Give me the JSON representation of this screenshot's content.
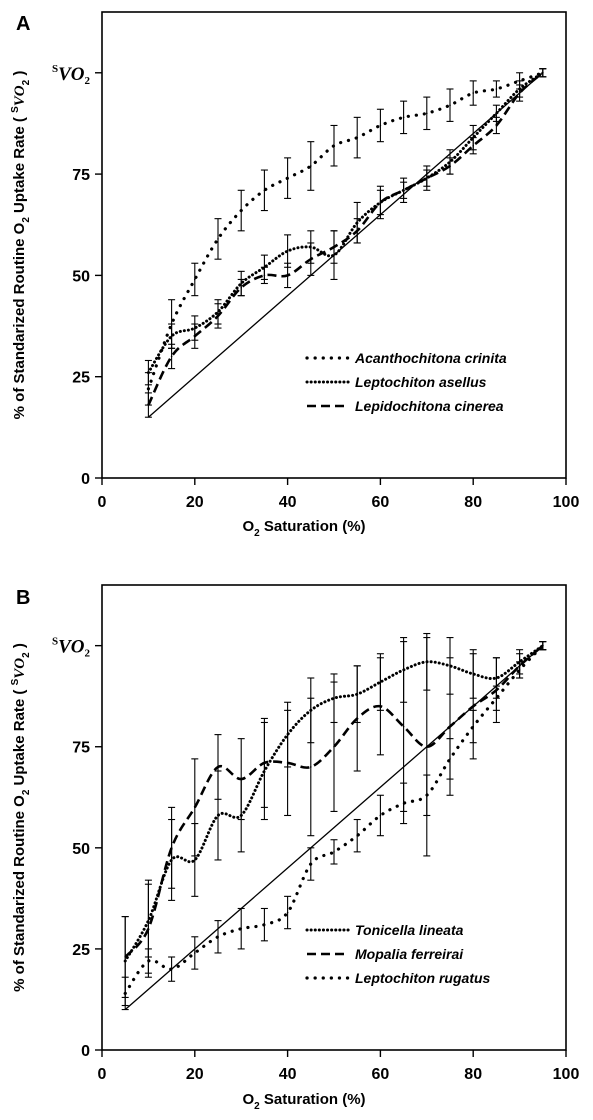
{
  "chart_data": [
    {
      "type": "line",
      "panel_label": "A",
      "xlabel_main": "O",
      "xlabel_sub": "2",
      "xlabel_rest": " Saturation (%)",
      "ylabel_pre": "% of Standarized Routine O",
      "ylabel_sub": "2",
      "ylabel_mid": " Uptake Rate ( ",
      "ylabel_sup": "S",
      "ylabel_v": "VO",
      "ylabel_sub2": "2",
      "ylabel_end": " )",
      "svo2_sup": "S",
      "svo2_v": "VO",
      "svo2_sub": "2",
      "xlim": [
        0,
        100
      ],
      "ylim": [
        0,
        115
      ],
      "x_ticks": [
        "0",
        "20",
        "40",
        "60",
        "80",
        "100"
      ],
      "y_ticks": [
        "0",
        "25",
        "50",
        "75"
      ],
      "legend_position": "bottom-right",
      "reference_line": [
        [
          10,
          15
        ],
        [
          95,
          100
        ]
      ],
      "series": [
        {
          "name": "Acanthochitona crinita",
          "style": "dotted-sparse",
          "x": [
            10,
            15,
            20,
            25,
            30,
            35,
            40,
            45,
            50,
            55,
            60,
            65,
            70,
            75,
            80,
            85,
            90,
            95
          ],
          "y": [
            22,
            38,
            49,
            59,
            66,
            71,
            74,
            77,
            82,
            84,
            87,
            89,
            90,
            92,
            95,
            96,
            98,
            100
          ],
          "err": [
            4,
            6,
            4,
            5,
            5,
            5,
            5,
            6,
            5,
            5,
            4,
            4,
            4,
            4,
            3,
            2,
            2,
            1
          ]
        },
        {
          "name": "Leptochiton asellus",
          "style": "dotted-dense",
          "x": [
            10,
            15,
            20,
            25,
            30,
            35,
            40,
            45,
            50,
            55,
            60,
            65,
            70,
            75,
            80,
            85,
            90,
            95
          ],
          "y": [
            26,
            35,
            37,
            41,
            48,
            52,
            56,
            57,
            55,
            63,
            68,
            71,
            74,
            78,
            84,
            90,
            96,
            100
          ],
          "err": [
            3,
            3,
            3,
            3,
            3,
            3,
            4,
            4,
            6,
            5,
            4,
            3,
            3,
            3,
            3,
            2,
            2,
            1
          ]
        },
        {
          "name": "Lepidochitona cinerea",
          "style": "dashed",
          "x": [
            10,
            15,
            20,
            25,
            30,
            35,
            40,
            45,
            50,
            55,
            60,
            65,
            70,
            75,
            80,
            85,
            90,
            95
          ],
          "y": [
            18,
            30,
            35,
            40,
            47,
            50,
            50,
            54,
            57,
            61,
            68,
            71,
            74,
            77,
            82,
            87,
            95,
            100
          ],
          "err": [
            3,
            3,
            3,
            3,
            2,
            2,
            3,
            4,
            4,
            3,
            3,
            2,
            2,
            2,
            2,
            2,
            2,
            1
          ]
        }
      ]
    },
    {
      "type": "line",
      "panel_label": "B",
      "xlabel_main": "O",
      "xlabel_sub": "2",
      "xlabel_rest": " Saturation (%)",
      "ylabel_pre": "% of Standarized Routine O",
      "ylabel_sub": "2",
      "ylabel_mid": " Uptake Rate ( ",
      "ylabel_sup": "S",
      "ylabel_v": "VO",
      "ylabel_sub2": "2",
      "ylabel_end": " )",
      "svo2_sup": "S",
      "svo2_v": "VO",
      "svo2_sub": "2",
      "xlim": [
        0,
        100
      ],
      "ylim": [
        0,
        115
      ],
      "x_ticks": [
        "0",
        "20",
        "40",
        "60",
        "80",
        "100"
      ],
      "y_ticks": [
        "0",
        "25",
        "50",
        "75"
      ],
      "legend_position": "bottom-right",
      "reference_line": [
        [
          5,
          10
        ],
        [
          95,
          100
        ]
      ],
      "series": [
        {
          "name": "Tonicella lineata",
          "style": "dotted-dense",
          "x": [
            5,
            10,
            15,
            20,
            25,
            30,
            35,
            40,
            45,
            50,
            55,
            60,
            65,
            70,
            75,
            80,
            85,
            90,
            95
          ],
          "y": [
            22,
            32,
            47,
            47,
            58,
            58,
            69,
            78,
            84,
            87,
            88,
            91,
            94,
            96,
            95,
            93,
            92,
            96,
            100
          ],
          "err": [
            11,
            9,
            10,
            9,
            11,
            9,
            12,
            8,
            8,
            6,
            7,
            7,
            8,
            7,
            7,
            6,
            5,
            3,
            1
          ]
        },
        {
          "name": "Mopalia ferreirai",
          "style": "dashed",
          "x": [
            5,
            10,
            15,
            20,
            25,
            30,
            35,
            40,
            45,
            50,
            55,
            60,
            65,
            70,
            75,
            80,
            85,
            90,
            95
          ],
          "y": [
            23,
            30,
            50,
            60,
            70,
            67,
            71,
            71,
            70,
            75,
            82,
            85,
            80,
            75,
            80,
            85,
            89,
            95,
            100
          ],
          "err": [
            10,
            12,
            10,
            12,
            8,
            10,
            11,
            13,
            17,
            16,
            13,
            12,
            21,
            27,
            17,
            13,
            8,
            3,
            1
          ]
        },
        {
          "name": "Leptochiton rugatus",
          "style": "dotted-sparse",
          "x": [
            5,
            10,
            15,
            20,
            25,
            30,
            35,
            40,
            45,
            50,
            55,
            60,
            65,
            70,
            75,
            80,
            85,
            90,
            95
          ],
          "y": [
            14,
            22,
            20,
            24,
            28,
            30,
            31,
            34,
            46,
            49,
            53,
            58,
            61,
            63,
            72,
            80,
            87,
            94,
            100
          ],
          "err": [
            4,
            3,
            3,
            4,
            4,
            5,
            4,
            4,
            4,
            3,
            4,
            5,
            5,
            5,
            5,
            4,
            3,
            2,
            1
          ]
        }
      ]
    }
  ]
}
